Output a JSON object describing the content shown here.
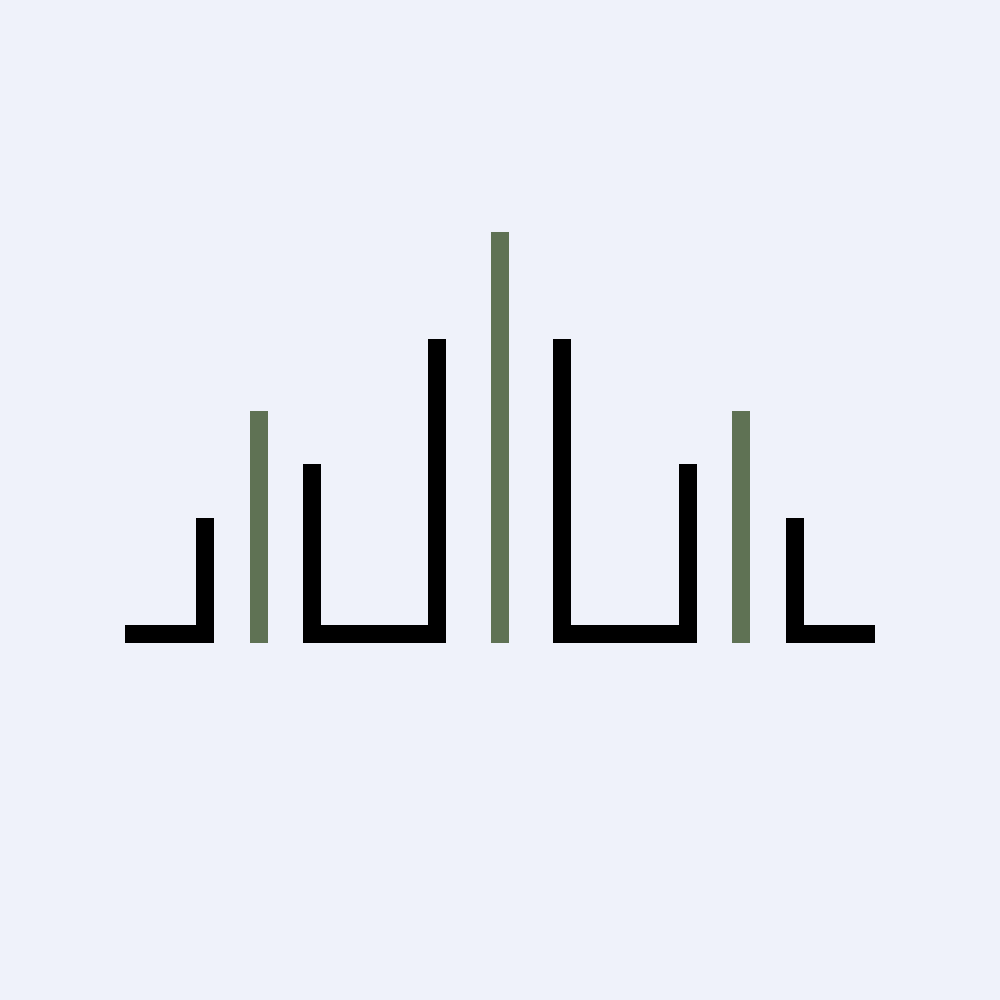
{
  "colors": {
    "background": "#eff2fa",
    "dark_stroke": "#000000",
    "accent_bar": "#5f7254"
  },
  "logo": {
    "icon": "abstract-bar-peaks-logo-icon"
  }
}
